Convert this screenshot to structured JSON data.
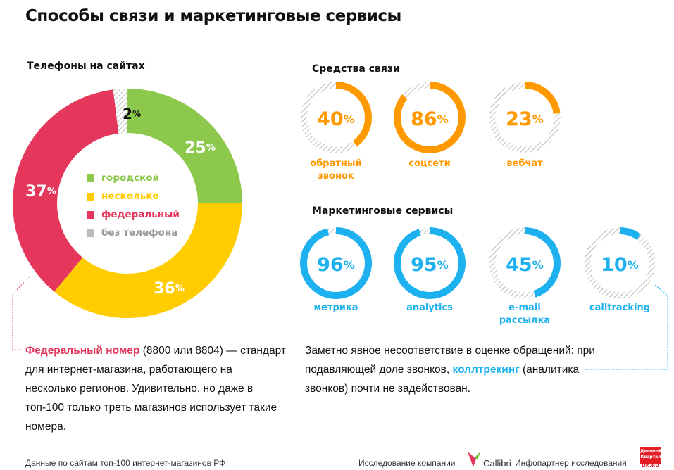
{
  "title": "Способы связи и маркетинговые сервисы",
  "chart_data": [
    {
      "type": "pie",
      "title": "Телефоны на сайтах",
      "donut": true,
      "slices": [
        {
          "name": "городской",
          "value": 25,
          "label": "25",
          "color": "#8cc84b"
        },
        {
          "name": "несколько",
          "value": 36,
          "label": "36",
          "color": "#ffcc00"
        },
        {
          "name": "федеральный",
          "value": 37,
          "label": "37",
          "color": "#e4375b"
        },
        {
          "name": "без телефона",
          "value": 2,
          "label": "2",
          "color": "#bbbbbb"
        }
      ],
      "legend": "center"
    },
    {
      "type": "pie",
      "title": "Средства связи",
      "color": "#ff9900",
      "items": [
        {
          "name": "обратный звонок",
          "value": 40,
          "label": "40"
        },
        {
          "name": "соцсети",
          "value": 86,
          "label": "86"
        },
        {
          "name": "вебчат",
          "value": 23,
          "label": "23"
        }
      ]
    },
    {
      "type": "pie",
      "title": "Маркетинговые сервисы",
      "color": "#1eb1f0",
      "items": [
        {
          "name": "метрика",
          "value": 96,
          "label": "96"
        },
        {
          "name": "analytics",
          "value": 95,
          "label": "95"
        },
        {
          "name": "e-mail рассылка",
          "value": 45,
          "label": "45"
        },
        {
          "name": "calltracking",
          "value": 10,
          "label": "10"
        }
      ]
    }
  ],
  "left_text": {
    "highlight": "Федеральный номер",
    "rest": " (8800 или 8804) — стандарт для интернет-магазина, работающего на несколько регионов. Удивительно, но даже в топ-100 только треть магазинов использует такие номера."
  },
  "right_text": {
    "before": "Заметно явное несоответствие в оценке обращений: при подавляющей доле звонков, ",
    "highlight": "коллтрекинг",
    "after": " (аналитика звонков) почти не задействован."
  },
  "footer": {
    "source": "Данные по сайтам топ-100 интернет-магазинов РФ",
    "research": "Исследование компании",
    "brand": "Callibri",
    "partner": "Инфопартнер исследования",
    "partner_logo": "Деловой Квартал DK.RU"
  },
  "percent": "%"
}
